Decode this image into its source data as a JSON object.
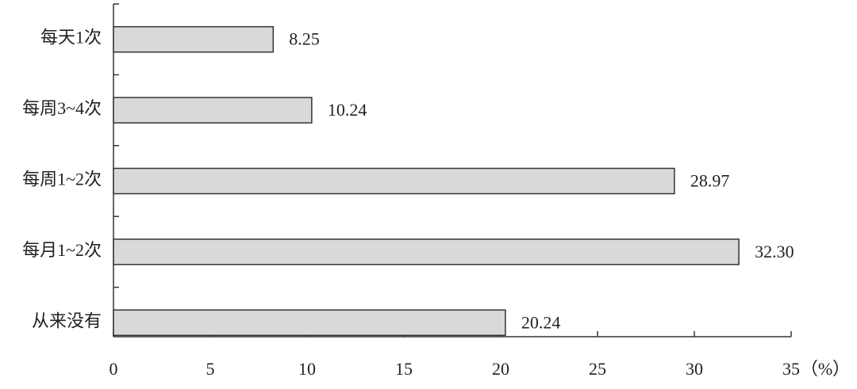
{
  "chart_data": {
    "type": "bar",
    "orientation": "horizontal",
    "categories": [
      "每天1次",
      "每周3~4次",
      "每周1~2次",
      "每月1~2次",
      "从来没有"
    ],
    "values": [
      8.25,
      10.24,
      28.97,
      32.3,
      20.24
    ],
    "value_labels": [
      "8.25",
      "10.24",
      "28.97",
      "32.30",
      "20.24"
    ],
    "color": "#d9d9d9",
    "x_label": "（%）",
    "xlim": [
      0,
      35
    ],
    "xticks": [
      0,
      5,
      10,
      15,
      20,
      25,
      30,
      35
    ]
  }
}
